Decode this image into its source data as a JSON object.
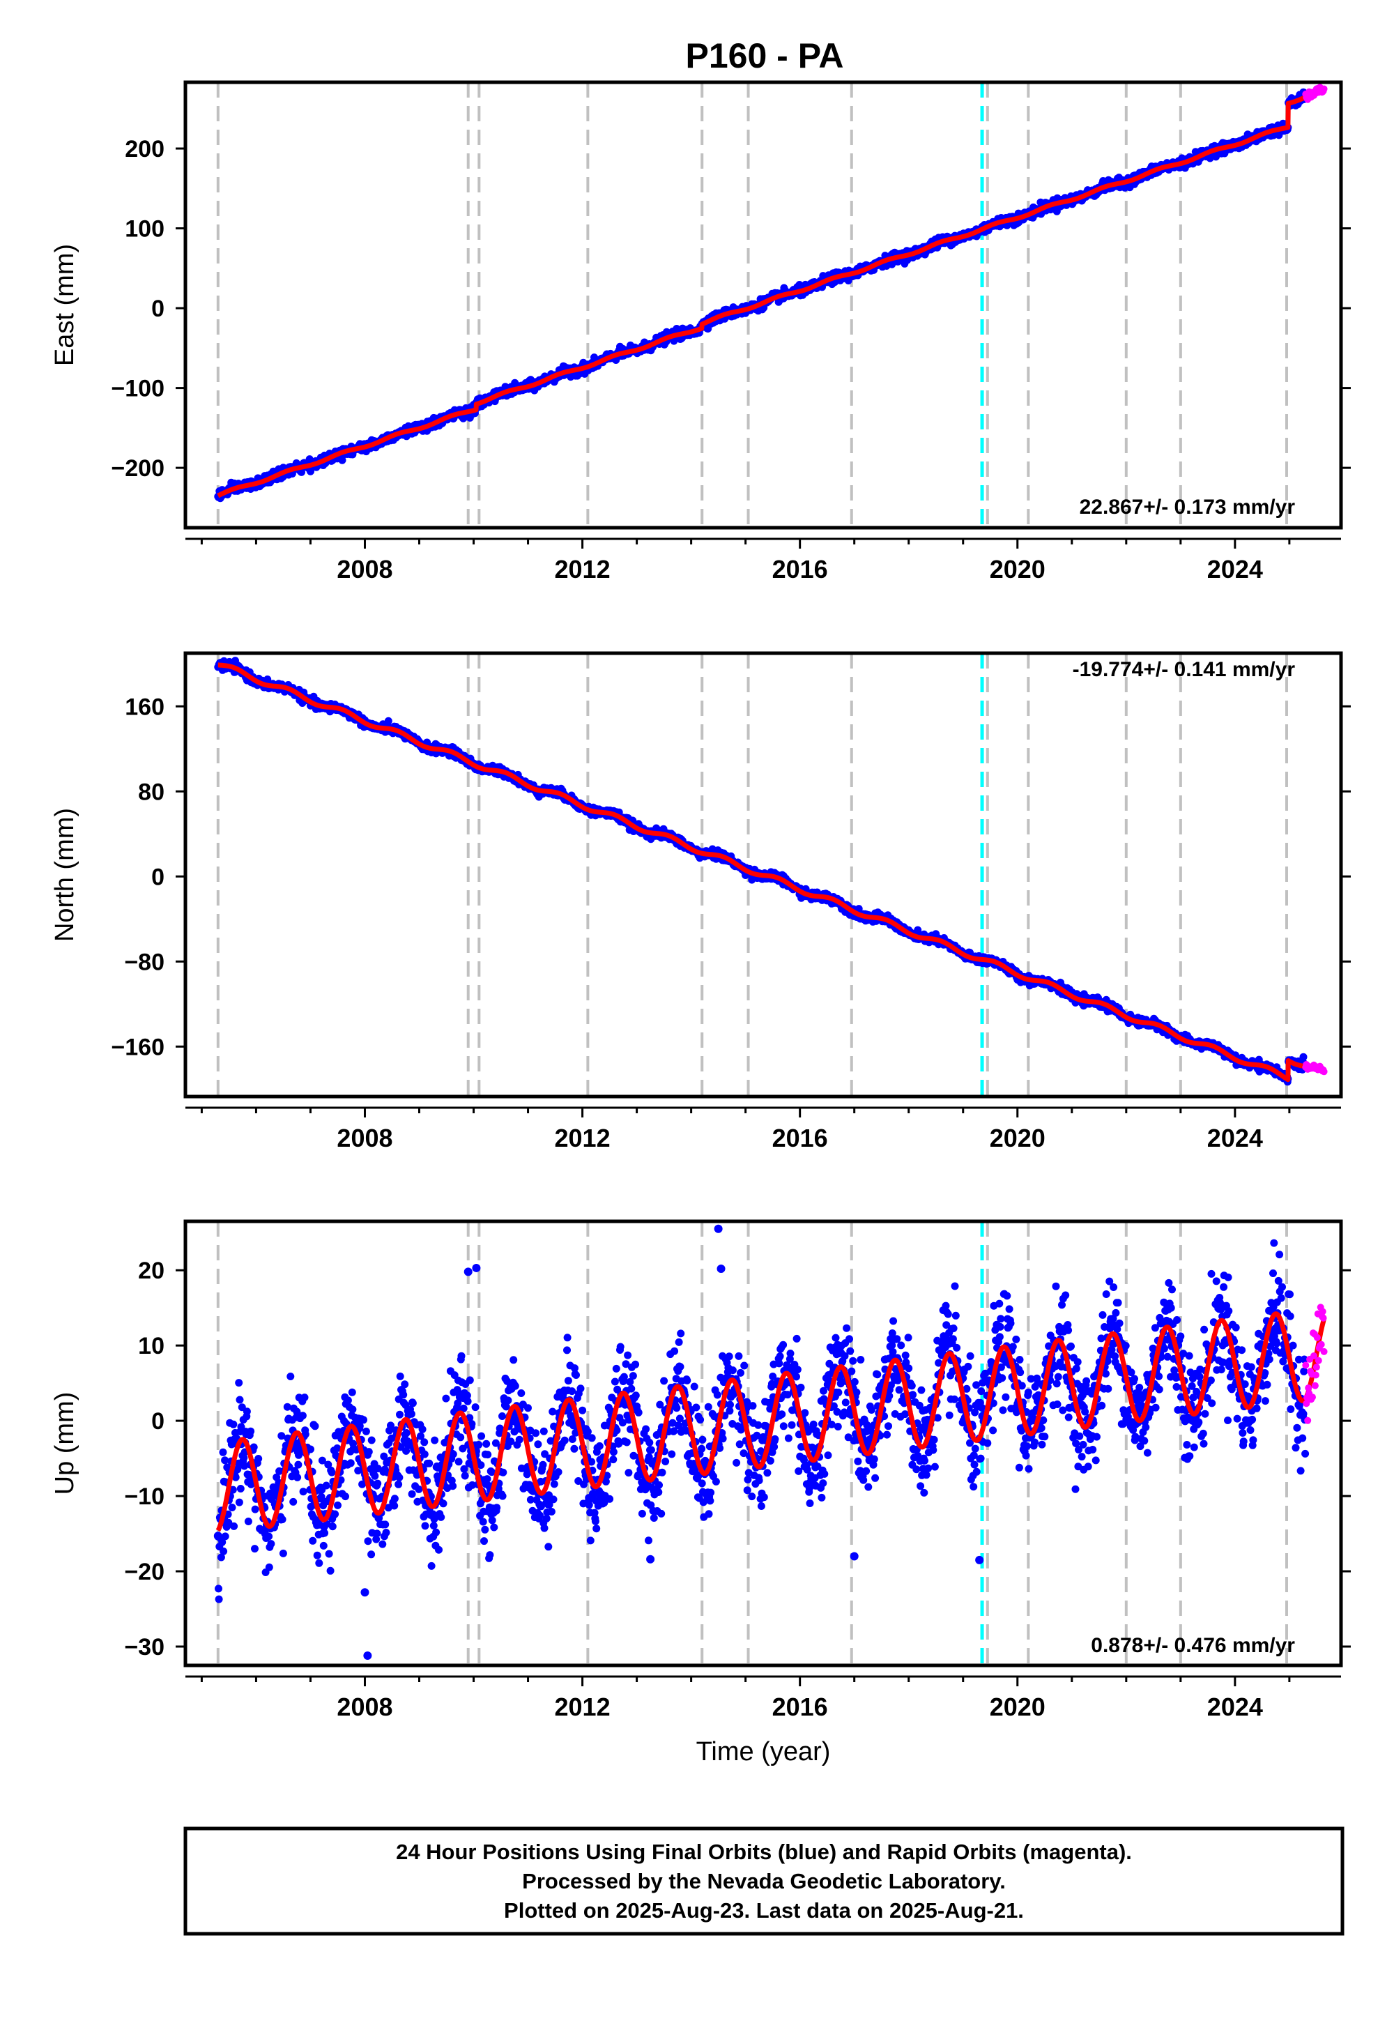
{
  "colors": {
    "final_orbits": "#0000ff",
    "rapid_orbits": "#ff00ff",
    "model": "#ff0000",
    "event_line": "#c0c0c0",
    "equipment_change": "#00ffff",
    "frame": "#000000"
  },
  "chart_data": [
    {
      "type": "scatter",
      "title": "P160 - PA",
      "xlabel": "",
      "ylabel": "East (mm)",
      "xlim": [
        2004.7,
        2025.95
      ],
      "ylim": [
        -275,
        283
      ],
      "xticks": [
        2008,
        2012,
        2016,
        2020,
        2024
      ],
      "xtick_labels": [
        "2008",
        "2012",
        "2016",
        "2020",
        "2024"
      ],
      "yticks": [
        -200,
        -100,
        0,
        100,
        200
      ],
      "ytick_labels": [
        "−200",
        "−100",
        "0",
        "100",
        "200"
      ],
      "rate": "22.867+/- 0.173 mm/yr",
      "series": [],
      "trend": {
        "slope": 22.867,
        "x0": 2015.55,
        "y0": 0
      },
      "steps": [
        {
          "x": 2010.05,
          "dy": 7
        },
        {
          "x": 2014.2,
          "dy": 5
        },
        {
          "x": 2024.98,
          "dy": 30
        }
      ],
      "seasonal": {
        "amplitude": 1.5
      },
      "noise_sd": 3.0,
      "rapid_range": [
        2025.3,
        2025.64
      ],
      "vlines_gray": [
        2005.3,
        2009.9,
        2010.1,
        2012.1,
        2014.2,
        2015.05,
        2016.95,
        2019.45,
        2020.2,
        2022.0,
        2023.0,
        2024.95
      ],
      "vlines_cyan": [
        2019.35
      ]
    },
    {
      "type": "scatter",
      "title": "",
      "xlabel": "",
      "ylabel": "North (mm)",
      "xlim": [
        2004.7,
        2025.95
      ],
      "ylim": [
        -207,
        210
      ],
      "xticks": [
        2008,
        2012,
        2016,
        2020,
        2024
      ],
      "xtick_labels": [
        "2008",
        "2012",
        "2016",
        "2020",
        "2024"
      ],
      "yticks": [
        -160,
        -80,
        0,
        80,
        160
      ],
      "ytick_labels": [
        "−160",
        "−80",
        "0",
        "80",
        "160"
      ],
      "rate": "-19.774+/- 0.141 mm/yr",
      "series": [],
      "trend": {
        "slope": -19.774,
        "x0": 2015.4,
        "y0": 0
      },
      "steps": [
        {
          "x": 2024.98,
          "dy": 18
        }
      ],
      "seasonal": {
        "amplitude": 2.5
      },
      "noise_sd": 2.0,
      "rapid_range": [
        2025.3,
        2025.64
      ],
      "vlines_gray": [
        2005.3,
        2009.9,
        2010.1,
        2012.1,
        2014.2,
        2015.05,
        2016.95,
        2019.45,
        2020.2,
        2022.0,
        2023.0,
        2024.95
      ],
      "vlines_cyan": [
        2019.35
      ]
    },
    {
      "type": "scatter",
      "title": "",
      "xlabel": "Time (year)",
      "ylabel": "Up (mm)",
      "xlim": [
        2004.7,
        2025.95
      ],
      "ylim": [
        -32.5,
        26.5
      ],
      "xticks": [
        2008,
        2012,
        2016,
        2020,
        2024
      ],
      "xtick_labels": [
        "2008",
        "2012",
        "2016",
        "2020",
        "2024"
      ],
      "yticks": [
        -30,
        -20,
        -10,
        0,
        10,
        20
      ],
      "ytick_labels": [
        "−30",
        "−20",
        "−10",
        "0",
        "10",
        "20"
      ],
      "rate": "0.878+/- 0.476 mm/yr",
      "series": [],
      "trend": {
        "slope": 0.878,
        "x0": 2015.4,
        "y0": 0
      },
      "steps": [],
      "seasonal": {
        "amplitude": 6.0,
        "peak_frac": 0.75
      },
      "noise_sd": 3.5,
      "rapid_range": [
        2025.3,
        2025.64
      ],
      "outliers": [
        {
          "x": 2008.0,
          "y": -22.8
        },
        {
          "x": 2008.05,
          "y": -31.2
        },
        {
          "x": 2014.5,
          "y": 25.5
        },
        {
          "x": 2014.55,
          "y": 20.2
        },
        {
          "x": 2009.9,
          "y": 19.8
        },
        {
          "x": 2010.05,
          "y": 20.3
        },
        {
          "x": 2005.3,
          "y": -15.3
        },
        {
          "x": 2013.25,
          "y": -18.4
        },
        {
          "x": 2017.0,
          "y": -18.0
        },
        {
          "x": 2019.3,
          "y": -18.5
        }
      ],
      "vlines_gray": [
        2005.3,
        2009.9,
        2010.1,
        2012.1,
        2014.2,
        2015.05,
        2016.95,
        2019.45,
        2020.2,
        2022.0,
        2023.0,
        2024.95
      ],
      "vlines_cyan": [
        2019.35
      ]
    }
  ],
  "footer": {
    "line1": "24 Hour Positions Using Final Orbits (blue) and Rapid Orbits (magenta).",
    "line2": "Processed by the Nevada Geodetic Laboratory.",
    "line3": "Plotted on 2025-Aug-23. Last data on 2025-Aug-21."
  }
}
